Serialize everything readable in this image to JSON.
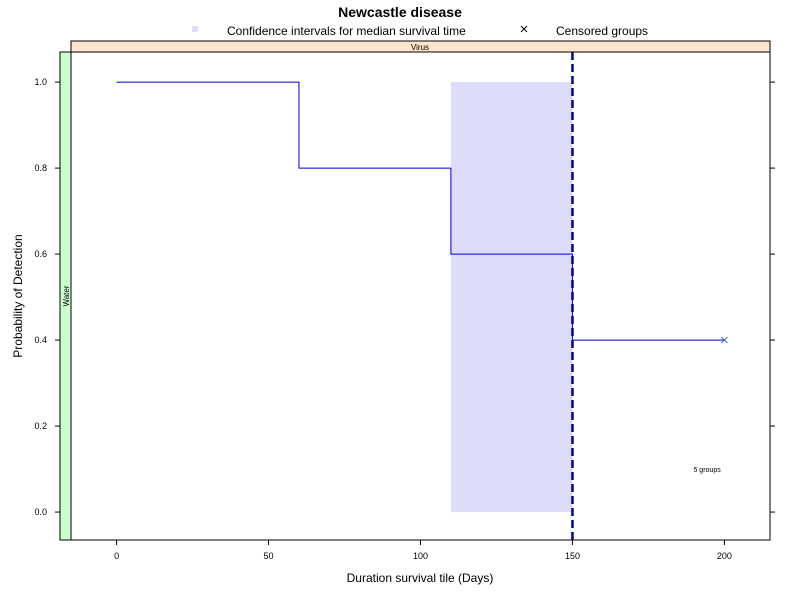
{
  "chart_data": {
    "type": "line",
    "title": "Newcastle disease",
    "xlabel": "Duration survival tile (Days)",
    "ylabel": "Probability of Detection",
    "xlim": [
      -15,
      215
    ],
    "ylim": [
      -0.065,
      1.07
    ],
    "x_ticks": [
      0,
      50,
      100,
      150,
      200
    ],
    "x_tick_labels": [
      "0",
      "50",
      "100",
      "150",
      "200"
    ],
    "y_ticks": [
      0.0,
      0.2,
      0.4,
      0.6,
      0.8,
      1.0
    ],
    "y_tick_labels": [
      "0.0",
      "0.2",
      "0.4",
      "0.6",
      "0.8",
      "1.0"
    ],
    "grid": false,
    "legend": {
      "position": "top",
      "items": [
        {
          "label": "Confidence intervals for median survival time",
          "marker": "square",
          "color": "#ddddfa"
        },
        {
          "label": "Censored groups",
          "marker": "x",
          "color": "#000000"
        }
      ]
    },
    "strip_top": {
      "label": "Virus",
      "color": "#ffe5cc"
    },
    "strip_left": {
      "label": "Water",
      "color": "#ccffcc"
    },
    "series": [
      {
        "type": "step",
        "color": "#0000cc",
        "points": [
          [
            0,
            1.0
          ],
          [
            60,
            1.0
          ],
          [
            60,
            0.8
          ],
          [
            110,
            0.8
          ],
          [
            110,
            0.6
          ],
          [
            150,
            0.6
          ],
          [
            150,
            0.4
          ],
          [
            200,
            0.4
          ]
        ]
      }
    ],
    "confidence_interval": {
      "x_start": 110,
      "x_end": 150,
      "y_low": 0.0,
      "y_high": 1.0,
      "color": "#ddddfa"
    },
    "median_line": {
      "x": 150,
      "style": "dashed",
      "color": "#0000aa"
    },
    "censored_points": [
      {
        "x": 200,
        "y": 0.4
      }
    ],
    "annotation": {
      "text": "5 groups",
      "x": 192,
      "y": 0.1
    }
  }
}
